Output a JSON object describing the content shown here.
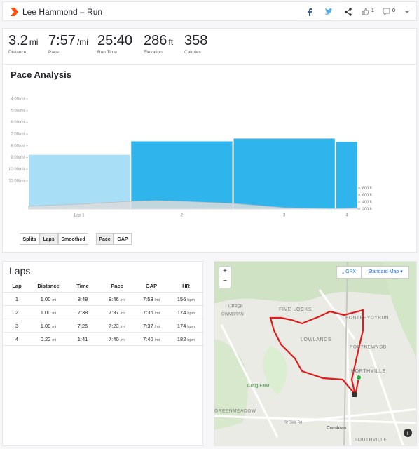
{
  "header": {
    "title": "Lee Hammond – Run",
    "kudos": "1",
    "comments": "0"
  },
  "stats": [
    {
      "value": "3.2",
      "unit": "mi",
      "label": "Distance"
    },
    {
      "value": "7:57",
      "unit": "/mi",
      "label": "Pace"
    },
    {
      "value": "25:40",
      "label": "Run Time"
    },
    {
      "value": "286",
      "unit": "ft",
      "label": "Elevation"
    },
    {
      "value": "358",
      "label": "Calories"
    }
  ],
  "pace_analysis": {
    "title": "Pace Analysis",
    "chart": {
      "type": "bar",
      "categories": [
        "Lap 1",
        "2",
        "3",
        "4"
      ],
      "bins": [
        0,
        1,
        2,
        3,
        3.22
      ],
      "xlim": [
        0,
        3.22
      ],
      "values": [
        8.77,
        7.62,
        7.38,
        7.67
      ],
      "colors": [
        "#a8def6",
        "#2fb5ec",
        "#2fb5ec",
        "#2fb5ec"
      ],
      "ylim": [
        4,
        13.4
      ],
      "inverted": true,
      "yticks": [
        {
          "value": 4,
          "label": "4:00/mi"
        },
        {
          "value": 5,
          "label": "5:00/mi"
        },
        {
          "value": 6,
          "label": "6:00/mi"
        },
        {
          "value": 7,
          "label": "7:00/mi"
        },
        {
          "value": 8,
          "label": "8:00/mi"
        },
        {
          "value": 9,
          "label": "9:00/mi"
        },
        {
          "value": 10,
          "label": "10:00/mi"
        },
        {
          "value": 11,
          "label": "11:00/mi"
        }
      ],
      "elevation": {
        "color": "#dcdcdc",
        "x": [
          0,
          0.5,
          1,
          1.25,
          1.5,
          2,
          2.5,
          3,
          3.22
        ],
        "values": [
          280,
          340,
          420,
          440,
          420,
          360,
          240,
          210,
          240
        ]
      },
      "y2lim": [
        200,
        800
      ],
      "y2ticks": [
        {
          "value": 200,
          "label": "200 ft"
        },
        {
          "value": 400,
          "label": "400 ft"
        },
        {
          "value": 600,
          "label": "600 ft"
        },
        {
          "value": 800,
          "label": "800 ft"
        }
      ]
    },
    "buttons": [
      "Splits",
      "Laps",
      "Smoothed",
      "Pace",
      "GAP"
    ]
  },
  "laps": {
    "title": "Laps",
    "columns": [
      "Lap",
      "Distance",
      "Time",
      "Pace",
      "GAP",
      "HR"
    ],
    "rows": [
      [
        "1",
        [
          "1.00",
          "mi"
        ],
        "8:48",
        [
          "8:46",
          "/mi"
        ],
        [
          "7:53",
          "/mi"
        ],
        [
          "156",
          "bpm"
        ]
      ],
      [
        "2",
        [
          "1.00",
          "mi"
        ],
        "7:38",
        [
          "7:37",
          "/mi"
        ],
        [
          "7:36",
          "/mi"
        ],
        [
          "174",
          "bpm"
        ]
      ],
      [
        "3",
        [
          "1.00",
          "mi"
        ],
        "7:25",
        [
          "7:23",
          "/mi"
        ],
        [
          "7:37",
          "/mi"
        ],
        [
          "174",
          "bpm"
        ]
      ],
      [
        "4",
        [
          "0.22",
          "mi"
        ],
        "1:41",
        [
          "7:40",
          "/mi"
        ],
        [
          "7:40",
          "/mi"
        ],
        [
          "182",
          "bpm"
        ]
      ]
    ]
  },
  "map": {
    "zoom_in": "+",
    "zoom_out": "−",
    "gpx": "GPX",
    "style": "Standard Map",
    "labels": [
      "UPPER",
      "CWMBRAN",
      "FIVE LOCKS",
      "PONTRHYDYRUN",
      "LOWLANDS",
      "PONTNEWYDD",
      "NORTHVILLE",
      "Craig Fawr",
      "GREENMEADOW",
      "St Dials Rd",
      "Cwmbran",
      "SOUTHVILLE"
    ]
  }
}
